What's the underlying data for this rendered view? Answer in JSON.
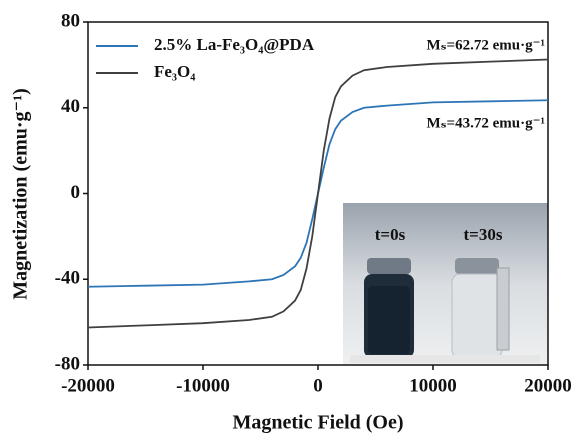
{
  "chart_data": {
    "type": "line",
    "xlabel": "Magnetic Field (Oe)",
    "ylabel": "Magnetization (emu·g⁻¹)",
    "x": [
      -20000,
      -15000,
      -10000,
      -6000,
      -4000,
      -3000,
      -2000,
      -1500,
      -1000,
      -500,
      0,
      500,
      1000,
      1500,
      2000,
      3000,
      4000,
      6000,
      10000,
      15000,
      20000
    ],
    "series": [
      {
        "name": "2.5% La-Fe₃O₄@PDA",
        "color": "#2e75b6",
        "values": [
          -43.5,
          -43,
          -42.5,
          -41,
          -40,
          -38,
          -34,
          -30,
          -23,
          -12,
          0,
          12,
          23,
          30,
          34,
          38,
          40,
          41,
          42.5,
          43,
          43.5
        ]
      },
      {
        "name": "Fe₃O₄",
        "color": "#404040",
        "values": [
          -62.5,
          -61.5,
          -60.5,
          -59,
          -57.5,
          -55,
          -50,
          -45,
          -35,
          -20,
          0,
          20,
          35,
          45,
          50,
          55,
          57.5,
          59,
          60.5,
          61.5,
          62.5
        ]
      }
    ],
    "xlim": [
      -20000,
      20000
    ],
    "xticks": [
      -20000,
      -10000,
      0,
      10000,
      20000
    ],
    "ylim": [
      -80,
      80
    ],
    "yticks": [
      -80,
      -40,
      0,
      40,
      80
    ],
    "legend": "upper left",
    "annotations": [
      {
        "text": "Mₛ=62.72 emu·g⁻¹",
        "color": "#111111"
      },
      {
        "text": "Mₛ=43.72 emu·g⁻¹",
        "color": "#2e75b6"
      }
    ],
    "inset_labels": [
      "t=0s",
      "t=30s"
    ]
  }
}
